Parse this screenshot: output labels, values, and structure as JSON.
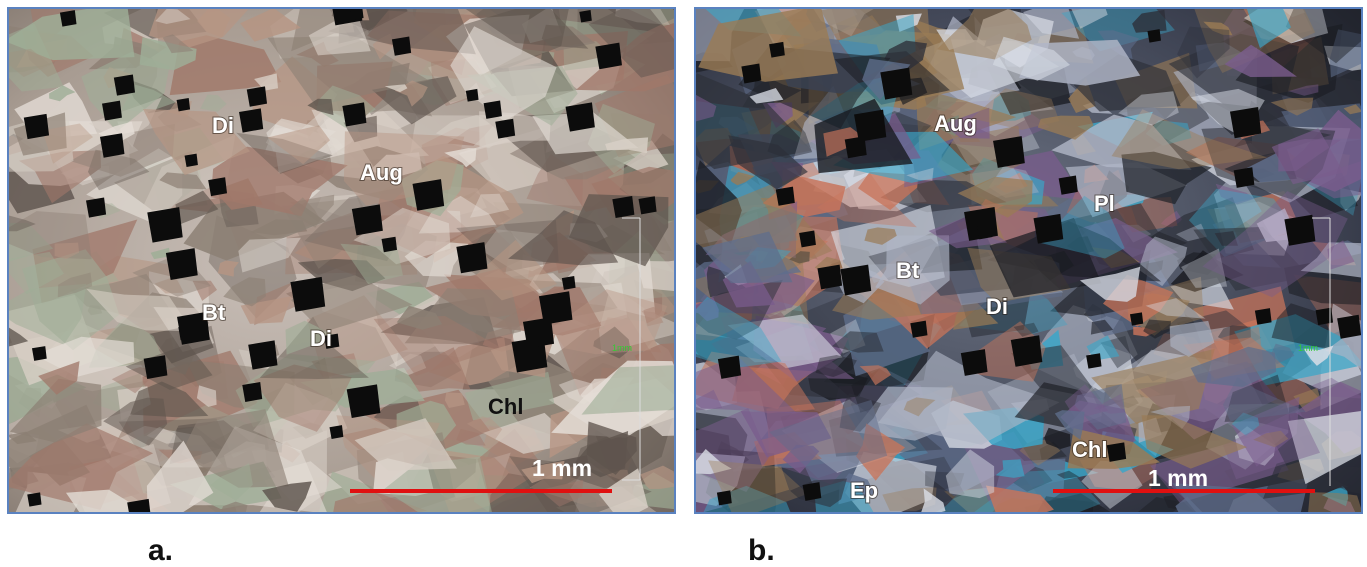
{
  "panels": [
    {
      "caption": "a.",
      "labels": [
        "Di",
        "Aug",
        "Bt",
        "Di",
        "Chl"
      ],
      "scale": "1 mm",
      "micro_scale": "1mm"
    },
    {
      "caption": "b.",
      "labels": [
        "Aug",
        "Pl",
        "Bt",
        "Di",
        "Chl",
        "Ep"
      ],
      "scale": "1 mm",
      "micro_scale": "1mm"
    }
  ]
}
